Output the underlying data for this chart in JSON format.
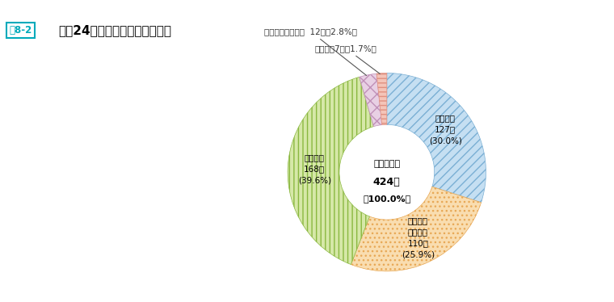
{
  "title": "平成24年度末派遣先機関別状況",
  "title_tag": "図8-2",
  "center_line1": "派遣者総数",
  "center_line2": "424人",
  "center_line3": "（100.0%）",
  "slices": [
    {
      "name": "国際連合\n127人\n(30.0%)",
      "value": 127,
      "facecolor": "#c5dff2",
      "hatch": "///",
      "edgecolor": "#7aafd4"
    },
    {
      "name": "その他の\n国際機関\n110人\n(25.9%)",
      "value": 110,
      "facecolor": "#f9ddb0",
      "hatch": "...",
      "edgecolor": "#e8a855"
    },
    {
      "name": "外国政府\n168人\n(39.6%)",
      "value": 168,
      "facecolor": "#d6e8a8",
      "hatch": "|||",
      "edgecolor": "#8ab840"
    },
    {
      "name": "指令で定める機関  12人（2.8%）",
      "value": 12,
      "facecolor": "#e8d0e4",
      "hatch": "xx",
      "edgecolor": "#c090b8"
    },
    {
      "name": "研究所　7人（1.7%）",
      "value": 7,
      "facecolor": "#f4c4b8",
      "hatch": "---",
      "edgecolor": "#e09080"
    }
  ],
  "annot_labels": [
    "指令で定める機関  12人（2.8%）",
    "研究所　7人（1.7%）"
  ],
  "startangle": 90,
  "donut_width": 0.52,
  "bg_color": "#ffffff",
  "figsize": [
    7.6,
    3.74
  ],
  "dpi": 100
}
